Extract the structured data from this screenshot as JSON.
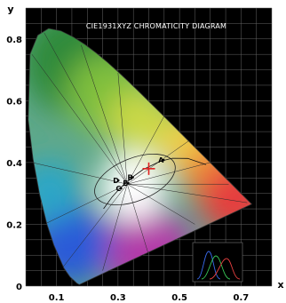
{
  "chart_data": {
    "type": "scatter",
    "title": "CIE1931XYZ CHROMATICITY DIAGRAM",
    "xlabel": "x",
    "ylabel": "y",
    "xlim": [
      0,
      0.8
    ],
    "ylim": [
      0,
      0.9
    ],
    "x_ticks": [
      {
        "value": 0.1,
        "label": "0.1"
      },
      {
        "value": 0.3,
        "label": "0.3"
      },
      {
        "value": 0.5,
        "label": "0.5"
      },
      {
        "value": 0.7,
        "label": "0.7"
      }
    ],
    "y_ticks": [
      {
        "value": 0,
        "label": "0"
      },
      {
        "value": 0.2,
        "label": "0.2"
      },
      {
        "value": 0.4,
        "label": "0.4"
      },
      {
        "value": 0.6,
        "label": "0.6"
      },
      {
        "value": 0.8,
        "label": "0.8"
      }
    ],
    "grid": true,
    "background": "#000000",
    "points": [
      {
        "label": "A",
        "x": 0.448,
        "y": 0.408
      },
      {
        "label": "B",
        "x": 0.348,
        "y": 0.352
      },
      {
        "label": "C",
        "x": 0.31,
        "y": 0.316
      },
      {
        "label": "D",
        "x": 0.301,
        "y": 0.342
      },
      {
        "label": "E",
        "x": 0.333,
        "y": 0.333
      }
    ],
    "marker": {
      "x": 0.4,
      "y": 0.38,
      "color": "#e02020"
    },
    "spectral_locus": [
      [
        0.1741,
        0.005
      ],
      [
        0.1666,
        0.0089
      ],
      [
        0.144,
        0.0297
      ],
      [
        0.1241,
        0.0578
      ],
      [
        0.0913,
        0.1327
      ],
      [
        0.0687,
        0.2007
      ],
      [
        0.0454,
        0.295
      ],
      [
        0.0235,
        0.4127
      ],
      [
        0.0082,
        0.5384
      ],
      [
        0.0139,
        0.7502
      ],
      [
        0.0389,
        0.812
      ],
      [
        0.0743,
        0.8338
      ],
      [
        0.1142,
        0.8262
      ],
      [
        0.1547,
        0.8059
      ],
      [
        0.1929,
        0.7816
      ],
      [
        0.2296,
        0.7543
      ],
      [
        0.2658,
        0.7243
      ],
      [
        0.3016,
        0.6923
      ],
      [
        0.3373,
        0.6589
      ],
      [
        0.3731,
        0.6245
      ],
      [
        0.4087,
        0.5896
      ],
      [
        0.4441,
        0.5547
      ],
      [
        0.4788,
        0.5202
      ],
      [
        0.5125,
        0.4866
      ],
      [
        0.5448,
        0.4544
      ],
      [
        0.5752,
        0.4242
      ],
      [
        0.6029,
        0.3965
      ],
      [
        0.627,
        0.3725
      ],
      [
        0.6482,
        0.3514
      ],
      [
        0.6658,
        0.334
      ],
      [
        0.6915,
        0.3083
      ],
      [
        0.7347,
        0.2653
      ]
    ],
    "planckian_locus": [
      [
        0.2531,
        0.2504
      ],
      [
        0.2806,
        0.2883
      ],
      [
        0.3065,
        0.3166
      ],
      [
        0.3221,
        0.3318
      ],
      [
        0.3457,
        0.3516
      ],
      [
        0.3805,
        0.3768
      ],
      [
        0.4369,
        0.4041
      ],
      [
        0.4764,
        0.4137
      ],
      [
        0.5267,
        0.4133
      ],
      [
        0.5857,
        0.3931
      ]
    ]
  }
}
